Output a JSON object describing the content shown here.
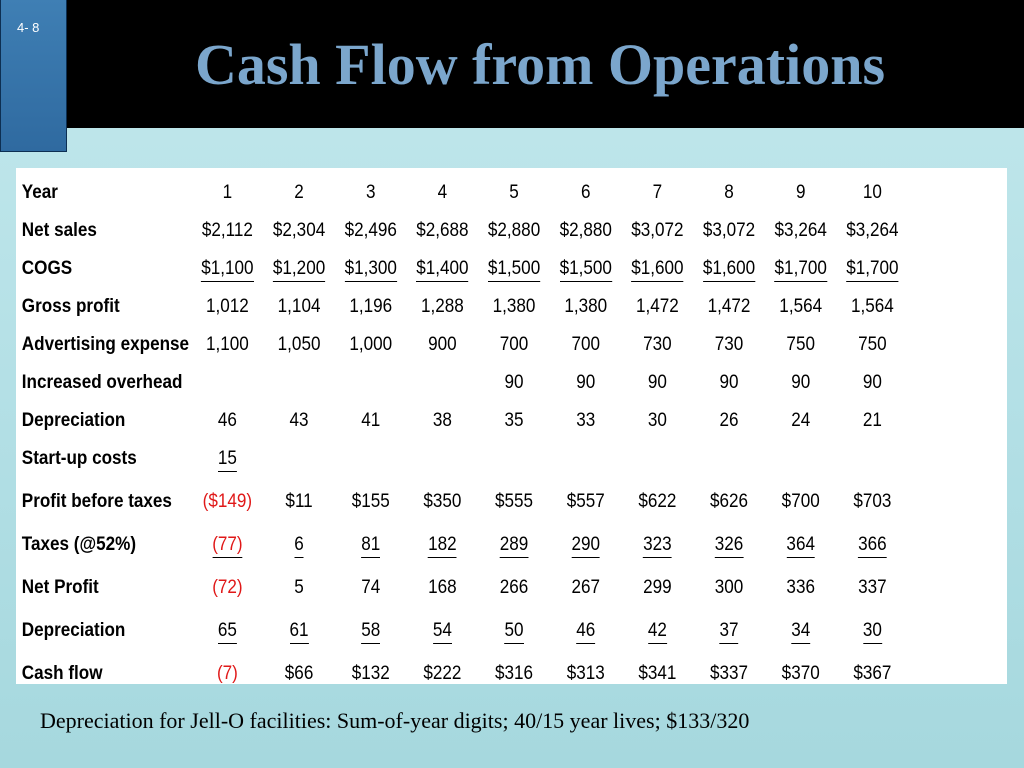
{
  "slide": {
    "number": "4- 8",
    "title": "Cash Flow from Operations",
    "footnote": "Depreciation for Jell-O facilities: Sum-of-year digits; 40/15 year lives; $133/320"
  },
  "table": {
    "rows": [
      {
        "label": "Year",
        "cells": [
          "1",
          "2",
          "3",
          "4",
          "5",
          "6",
          "7",
          "8",
          "9",
          "10"
        ]
      },
      {
        "label": "Net sales",
        "cells": [
          "$2,112",
          "$2,304",
          "$2,496",
          "$2,688",
          "$2,880",
          "$2,880",
          "$3,072",
          "$3,072",
          "$3,264",
          "$3,264"
        ]
      },
      {
        "label": "COGS",
        "cells": [
          "$1,100",
          "$1,200",
          "$1,300",
          "$1,400",
          "$1,500",
          "$1,500",
          "$1,600",
          "$1,600",
          "$1,700",
          "$1,700"
        ]
      },
      {
        "label": "Gross profit",
        "cells": [
          "1,012",
          "1,104",
          "1,196",
          "1,288",
          "1,380",
          "1,380",
          "1,472",
          "1,472",
          "1,564",
          "1,564"
        ]
      },
      {
        "label": "Advertising expense",
        "cells": [
          "1,100",
          "1,050",
          "1,000",
          "900",
          "700",
          "700",
          "730",
          "730",
          "750",
          "750"
        ]
      },
      {
        "label": "Increased overhead",
        "cells": [
          "",
          "",
          "",
          "",
          "90",
          "90",
          "90",
          "90",
          "90",
          "90"
        ]
      },
      {
        "label": "Depreciation",
        "cells": [
          "46",
          "43",
          "41",
          "38",
          "35",
          "33",
          "30",
          "26",
          "24",
          "21"
        ]
      },
      {
        "label": "Start-up costs",
        "cells": [
          "15",
          "",
          "",
          "",
          "",
          "",
          "",
          "",
          "",
          ""
        ]
      },
      {
        "label": "Profit before taxes",
        "cells": [
          "($149)",
          "$11",
          "$155",
          "$350",
          "$555",
          "$557",
          "$622",
          "$626",
          "$700",
          "$703"
        ]
      },
      {
        "label": "Taxes (@52%)",
        "cells": [
          "(77)",
          "6",
          "81",
          "182",
          "289",
          "290",
          "323",
          "326",
          "364",
          "366"
        ]
      },
      {
        "label": "Net Profit",
        "cells": [
          "(72)",
          "5",
          "74",
          "168",
          "266",
          "267",
          "299",
          "300",
          "336",
          "337"
        ]
      },
      {
        "label": "Depreciation",
        "cells": [
          "65",
          "61",
          "58",
          "54",
          "50",
          "46",
          "42",
          "37",
          "34",
          "30"
        ]
      },
      {
        "label": "Cash flow",
        "cells": [
          "(7)",
          "$66",
          "$132",
          "$222",
          "$316",
          "$313",
          "$341",
          "$337",
          "$370",
          "$367"
        ]
      }
    ],
    "underlined_rows": [
      2,
      7,
      9,
      11
    ],
    "negative_color": "#e01818"
  },
  "colors": {
    "title": "#7ba6cc",
    "header_bg": "#000000",
    "tab_bg": "#2f6aa0",
    "slide_bg": "#b4e0e6"
  }
}
